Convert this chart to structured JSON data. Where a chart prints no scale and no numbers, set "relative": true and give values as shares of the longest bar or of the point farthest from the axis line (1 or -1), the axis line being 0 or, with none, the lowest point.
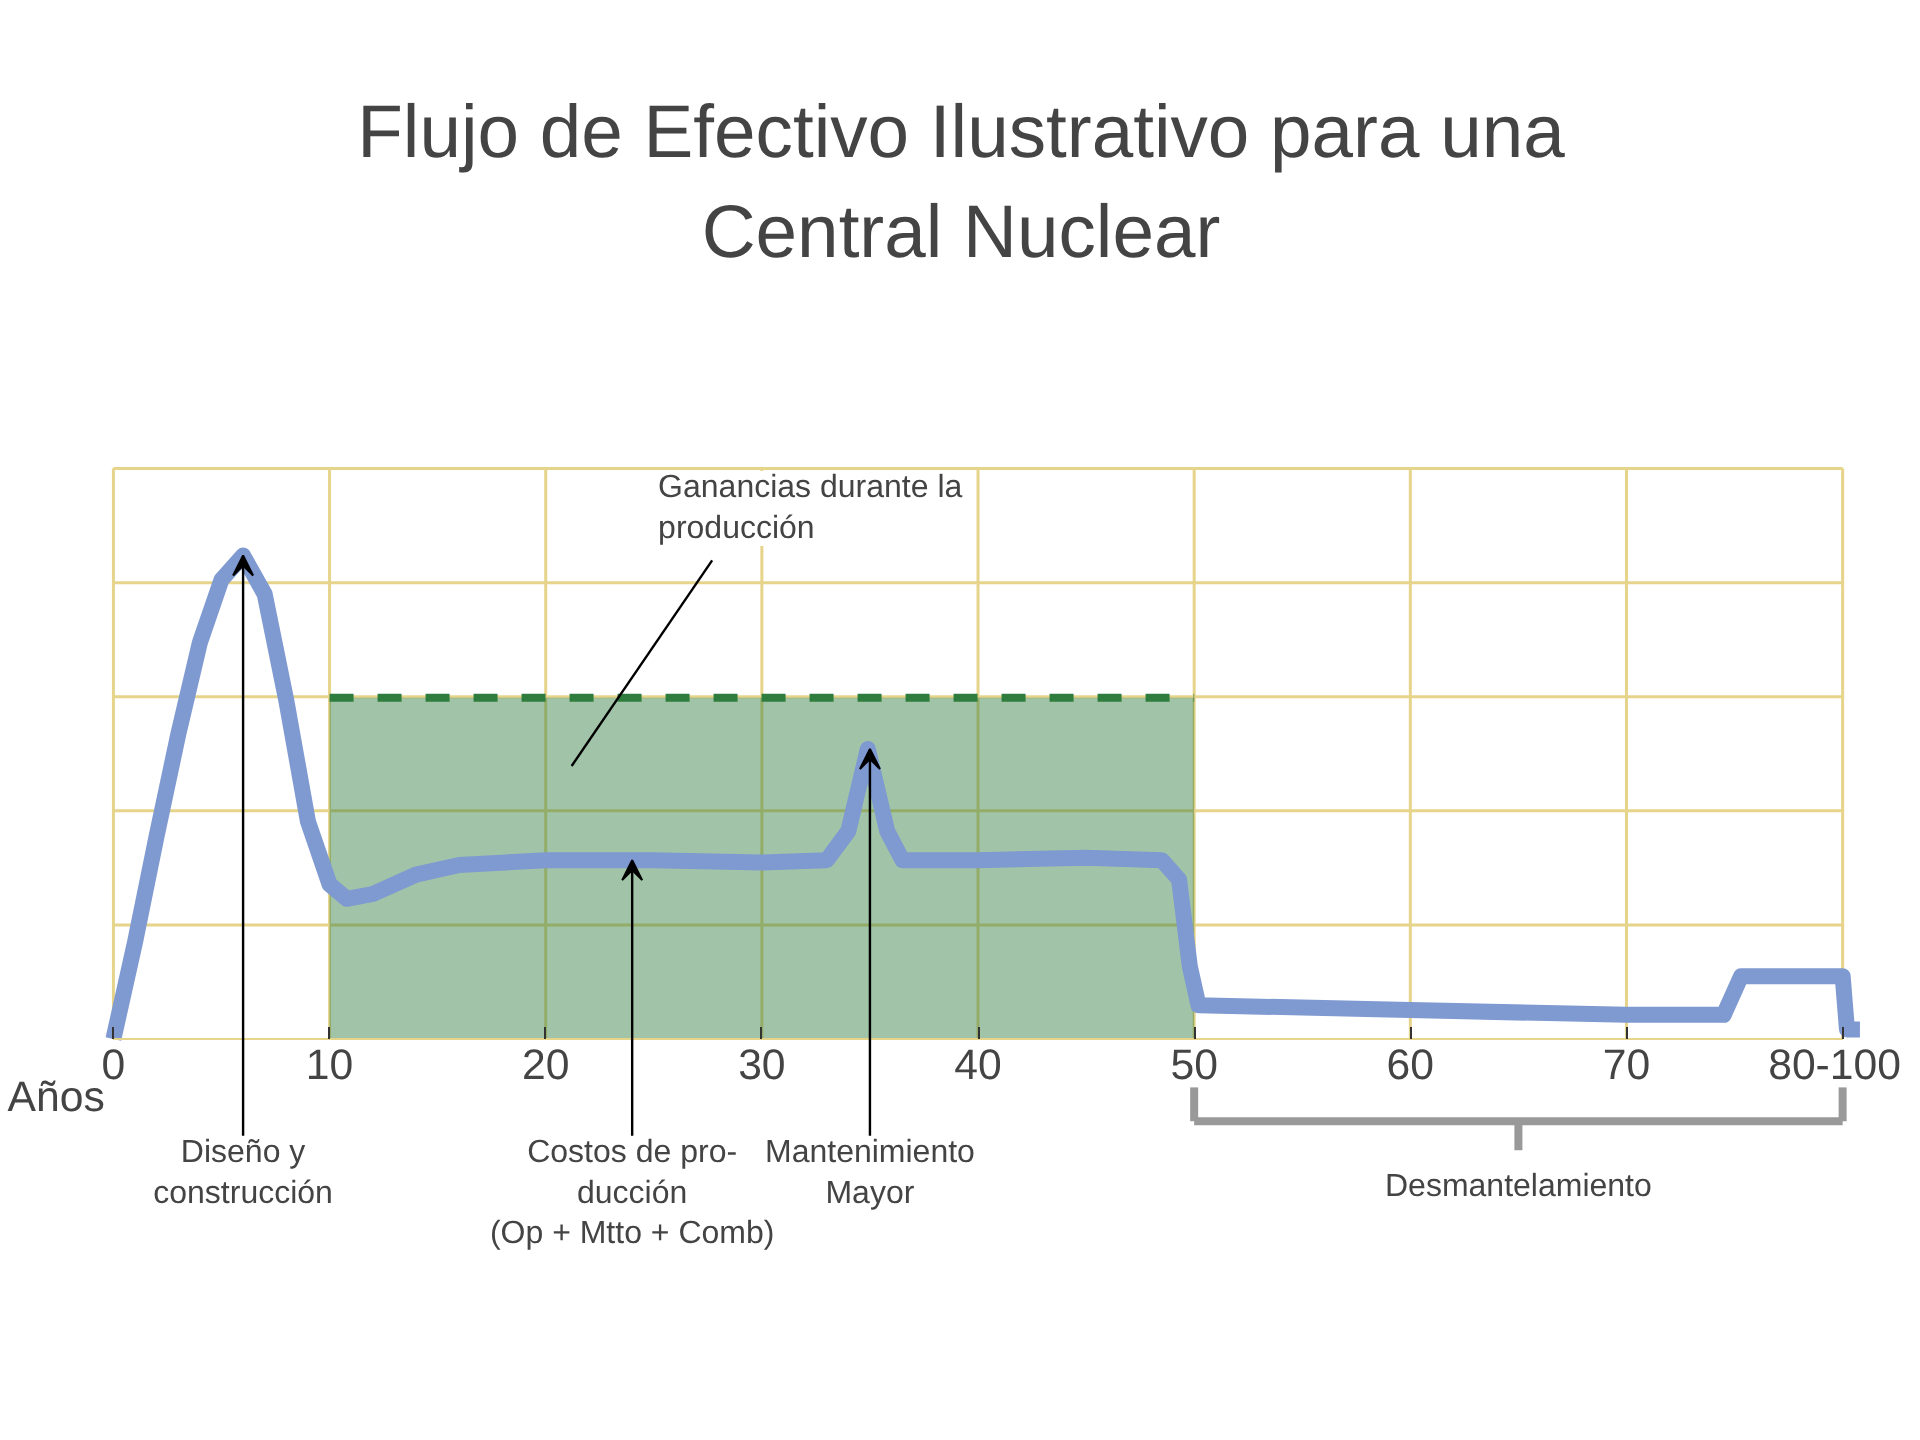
{
  "chart_data": {
    "type": "line",
    "title": "Flujo de Efectivo Ilustrativo para una Central Nuclear",
    "xlabel": "Años",
    "relative": true,
    "xlim": [
      -5.2,
      82.7
    ],
    "xticks": [
      0,
      10,
      20,
      30,
      40,
      50,
      60,
      70,
      {
        "value": 80,
        "label": "80-100"
      }
    ],
    "grid": true,
    "series": [
      {
        "type": "area",
        "color": "#2e7d3e",
        "x": [
          10,
          50
        ],
        "values": [
          0.706,
          0.706
        ],
        "line_style": "dashed"
      },
      {
        "color": "#7f99d1",
        "line_style": "solid",
        "x": [
          0,
          1,
          2,
          3,
          4,
          5,
          6,
          7,
          8,
          9,
          10,
          10.8,
          12,
          14,
          16,
          20,
          25,
          30,
          33,
          34,
          34.9,
          35.8,
          36.5,
          40,
          45,
          48.5,
          49.3,
          49.8,
          50.2,
          55,
          60,
          70,
          74.5,
          75.3,
          80,
          80.2,
          80.8
        ],
        "values": [
          0,
          0.2,
          0.42,
          0.63,
          0.82,
          0.95,
          1.0,
          0.92,
          0.7,
          0.45,
          0.32,
          0.29,
          0.3,
          0.34,
          0.36,
          0.37,
          0.37,
          0.365,
          0.37,
          0.43,
          0.6,
          0.43,
          0.37,
          0.37,
          0.375,
          0.37,
          0.33,
          0.15,
          0.07,
          0.065,
          0.06,
          0.05,
          0.05,
          0.13,
          0.13,
          0.02,
          0.02
        ]
      }
    ],
    "annotations": [
      "Ganancias durante la\nproducción",
      {
        "text": "Diseño y\nconstrucción",
        "x": 6,
        "y": 1.0
      },
      {
        "text": "Costos de pro-\nducción\n(Op + Mtto + Comb)",
        "x": 24,
        "y": 0.37
      },
      {
        "text": "Mantenimiento\nMayor",
        "x": 35,
        "y": 0.6
      },
      "Desmantelamiento"
    ]
  }
}
